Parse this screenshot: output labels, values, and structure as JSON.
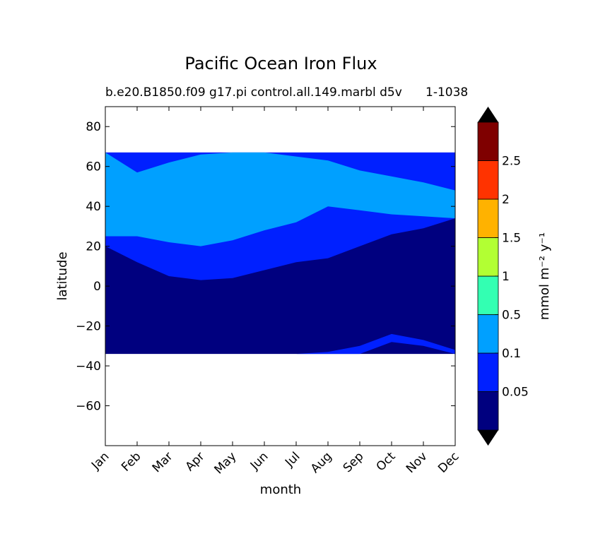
{
  "chart_data": {
    "type": "heatmap",
    "title": "Pacific Ocean Iron Flux",
    "subtitle_left": "b.e20.B1850.f09 g17.pi control.all.149.marbl d5v",
    "subtitle_right": "1-1038",
    "xlabel": "month",
    "ylabel": "latitude",
    "x_categories": [
      "Jan",
      "Feb",
      "Mar",
      "Apr",
      "May",
      "Jun",
      "Jul",
      "Aug",
      "Sep",
      "Oct",
      "Nov",
      "Dec"
    ],
    "ylim": [
      -80,
      90
    ],
    "y_ticks": [
      80,
      60,
      40,
      20,
      0,
      -20,
      -40,
      -60
    ],
    "data_lat_range": [
      -34,
      67
    ],
    "colorbar": {
      "label": "mmol m⁻² y⁻¹",
      "levels": [
        0,
        0.05,
        0.1,
        0.5,
        1,
        1.5,
        2,
        2.5,
        3
      ],
      "tick_labels": [
        "0.05",
        "0.1",
        "0.5",
        "1",
        "1.5",
        "2",
        "2.5"
      ],
      "colors": [
        "#00007f",
        "#0020ff",
        "#00a0ff",
        "#33ffb2",
        "#b2ff33",
        "#ffb200",
        "#ff3300",
        "#7f0000"
      ],
      "extend_color": "#000000"
    },
    "regions": [
      {
        "level": "0.05-0.1",
        "lat_south": [
          20,
          12,
          5,
          3,
          4,
          8,
          12,
          14,
          20,
          26,
          29,
          34
        ],
        "lat_north": [
          67,
          67,
          67,
          67,
          67,
          67,
          67,
          67,
          67,
          67,
          67,
          67
        ]
      },
      {
        "level": "0.1-0.5",
        "lat_south": [
          25,
          25,
          22,
          20,
          23,
          28,
          32,
          40,
          38,
          36,
          35,
          34
        ],
        "lat_north": [
          67,
          57,
          62,
          66,
          67,
          67,
          65,
          63,
          58,
          55,
          52,
          48
        ]
      },
      {
        "level": "0.05-0.1",
        "lat_south": [
          -34,
          -34,
          -34,
          -34,
          -34,
          -34,
          -34,
          -34,
          -34,
          -28,
          -30,
          -34
        ],
        "lat_north": [
          -34,
          -34,
          -34,
          -34,
          -34,
          -34,
          -34,
          -33,
          -30,
          -24,
          -27,
          -32
        ]
      }
    ]
  }
}
